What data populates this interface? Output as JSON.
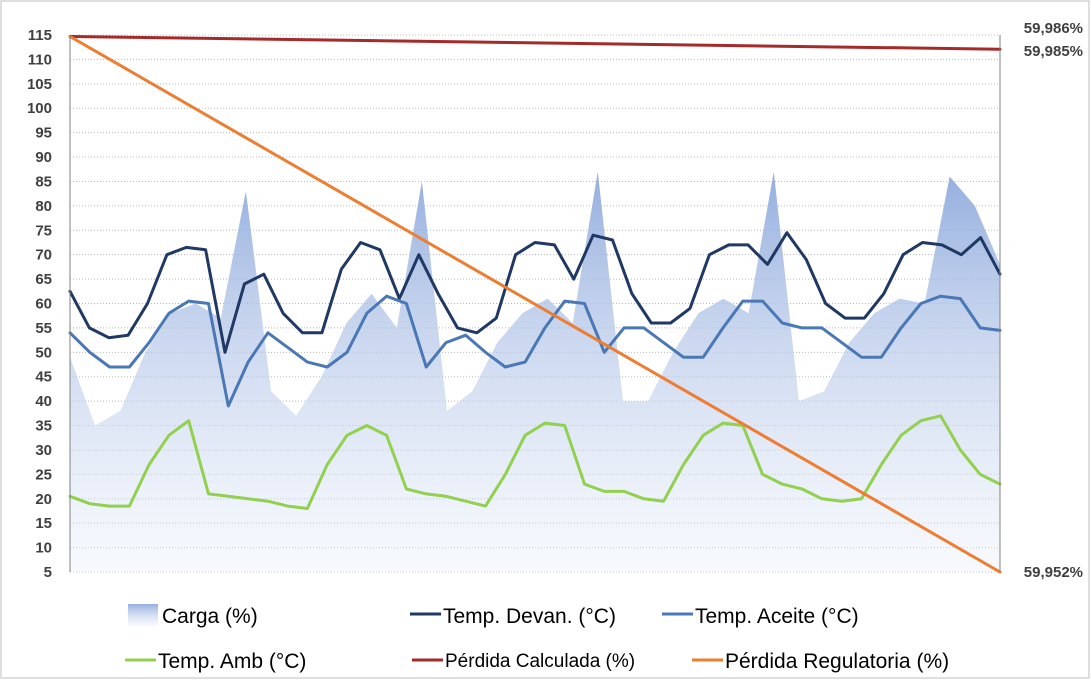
{
  "chart_data": {
    "type": "line",
    "title": "",
    "xlabel": "",
    "ylabel": "",
    "ylim": [
      5,
      115
    ],
    "y_ticks": [
      "5",
      "10",
      "15",
      "20",
      "25",
      "30",
      "35",
      "40",
      "45",
      "50",
      "55",
      "60",
      "65",
      "70",
      "75",
      "80",
      "85",
      "90",
      "95",
      "100",
      "105",
      "110",
      "115"
    ],
    "y2_labels": [
      "59,986%",
      "59,985%",
      "59,952%"
    ],
    "grid": "horizontal",
    "legend_position": "bottom",
    "x_count": 25,
    "series": [
      {
        "name": "Carga (%)",
        "kind": "area",
        "color": "#8faadc",
        "values": [
          49,
          35,
          38,
          50,
          58,
          60,
          57,
          83,
          42,
          37,
          45,
          56,
          62,
          55,
          85,
          38,
          42,
          52,
          58,
          61,
          56,
          87,
          40,
          40,
          50,
          58,
          61,
          58,
          87,
          40,
          42,
          52,
          58,
          61,
          60,
          86,
          80,
          68
        ]
      },
      {
        "name": "Temp. Devan. (°C)",
        "kind": "line",
        "color": "#1f3864",
        "values": [
          62.5,
          55,
          53,
          53.5,
          60,
          70,
          71.5,
          71,
          50,
          64,
          66,
          58,
          54,
          54,
          67,
          72.5,
          71,
          61,
          70,
          62,
          55,
          54,
          57,
          70,
          72.5,
          72,
          65,
          74,
          73,
          62,
          56,
          56,
          59,
          70,
          72,
          72,
          68,
          74.5,
          69,
          60,
          57,
          57,
          62,
          70,
          72.5,
          72,
          70,
          73.5,
          66
        ]
      },
      {
        "name": "Temp. Aceite (°C)",
        "kind": "line",
        "color": "#4a78b5",
        "values": [
          54,
          50,
          47,
          47,
          52,
          58,
          60.5,
          60,
          39,
          48,
          54,
          51,
          48,
          47,
          50,
          58,
          61.5,
          60,
          47,
          52,
          53.5,
          50,
          47,
          48,
          55,
          60.5,
          60,
          50,
          55,
          55,
          52,
          49,
          49,
          55,
          60.5,
          60.5,
          56,
          55,
          55,
          52,
          49,
          49,
          55,
          60,
          61.5,
          61,
          55,
          54.5
        ]
      },
      {
        "name": "Temp. Amb (°C)",
        "kind": "line",
        "color": "#92d050",
        "values": [
          20.5,
          19,
          18.5,
          18.5,
          27,
          33,
          36,
          21,
          20.5,
          20,
          19.5,
          18.5,
          18,
          27,
          33,
          35,
          33,
          22,
          21,
          20.5,
          19.5,
          18.5,
          25,
          33,
          35.5,
          35,
          23,
          21.5,
          21.5,
          20,
          19.5,
          27,
          33,
          35.5,
          35,
          25,
          23,
          22,
          20,
          19.5,
          20,
          27,
          33,
          36,
          37,
          30,
          25,
          23
        ]
      },
      {
        "name": "Pérdida Calculada (%)",
        "kind": "line",
        "color": "#a52a2a",
        "values": [
          114.7,
          112.1
        ]
      },
      {
        "name": "Pérdida Regulatoria (%)",
        "kind": "line",
        "color": "#ed7d31",
        "values": [
          114.7,
          5
        ]
      }
    ]
  }
}
